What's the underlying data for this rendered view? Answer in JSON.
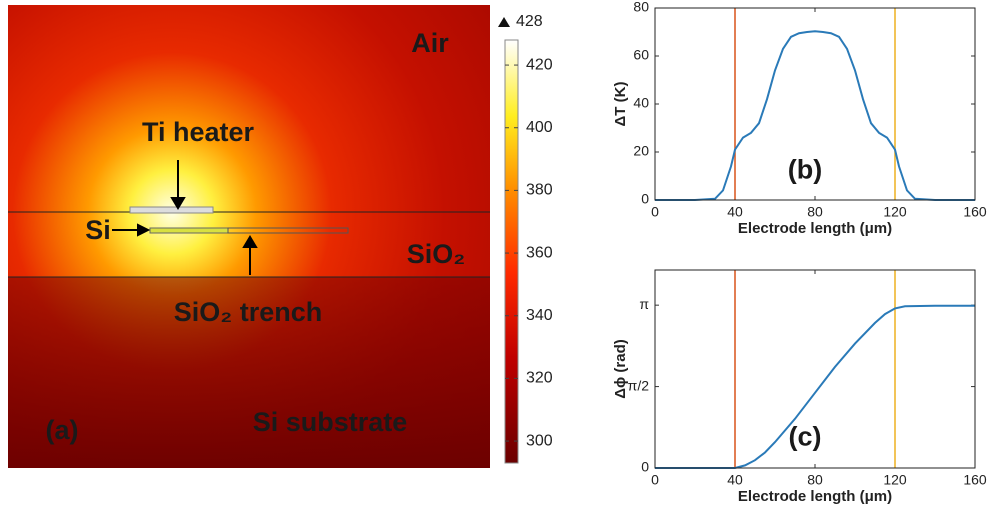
{
  "chart_data": [
    {
      "type": "heatmap",
      "labels": [
        "Air",
        "Ti heater",
        "Si",
        "SiO₂",
        "SiO₂ trench",
        "Si substrate",
        "(a)"
      ],
      "clim": [
        293,
        428
      ],
      "cticks": [
        300,
        320,
        340,
        360,
        380,
        400,
        420
      ],
      "cmax": 428
    },
    {
      "type": "line",
      "annotation": "(b)",
      "xlabel": "Electrode length (μm)",
      "ylabel": "ΔT (K)",
      "x": [
        0,
        20,
        30,
        34,
        38,
        40,
        44,
        48,
        52,
        56,
        60,
        64,
        68,
        72,
        76,
        80,
        84,
        88,
        92,
        96,
        100,
        104,
        108,
        112,
        116,
        120,
        122,
        126,
        130,
        140,
        160
      ],
      "series": [
        {
          "color": "#2a7ab8",
          "values": [
            0,
            0,
            0.5,
            4,
            14,
            21,
            26,
            28,
            32,
            42,
            54,
            63,
            68,
            69.5,
            70,
            70.3,
            70,
            69.5,
            68,
            63,
            54,
            42,
            32,
            28,
            26,
            21,
            14,
            4,
            0.5,
            0,
            0
          ]
        }
      ],
      "vlines": [
        {
          "x": 40,
          "color": "#d9541a"
        },
        {
          "x": 120,
          "color": "#edb020"
        }
      ],
      "xlim": [
        0,
        160
      ],
      "xticks": [
        0,
        40,
        80,
        120,
        160
      ],
      "ylim": [
        0,
        80
      ],
      "yticks": [
        0,
        20,
        40,
        60,
        80
      ]
    },
    {
      "type": "line",
      "annotation": "(c)",
      "xlabel": "Electrode length (μm)",
      "ylabel": "Δϕ (rad)",
      "x": [
        0,
        40,
        45,
        50,
        55,
        60,
        70,
        80,
        90,
        100,
        110,
        115,
        120,
        125,
        140,
        160
      ],
      "series": [
        {
          "color": "#2a7ab8",
          "values": [
            0,
            0,
            0.05,
            0.15,
            0.3,
            0.5,
            0.95,
            1.45,
            1.95,
            2.4,
            2.8,
            2.97,
            3.08,
            3.12,
            3.13,
            3.13
          ]
        }
      ],
      "vlines": [
        {
          "x": 40,
          "color": "#d9541a"
        },
        {
          "x": 120,
          "color": "#edb020"
        }
      ],
      "xlim": [
        0,
        160
      ],
      "xticks": [
        0,
        40,
        80,
        120,
        160
      ],
      "ylim": [
        0,
        3.82
      ],
      "yticks": [
        0,
        {
          "value": 1.5708,
          "label": "π/2"
        },
        {
          "value": 3.1416,
          "label": "π"
        }
      ]
    }
  ]
}
